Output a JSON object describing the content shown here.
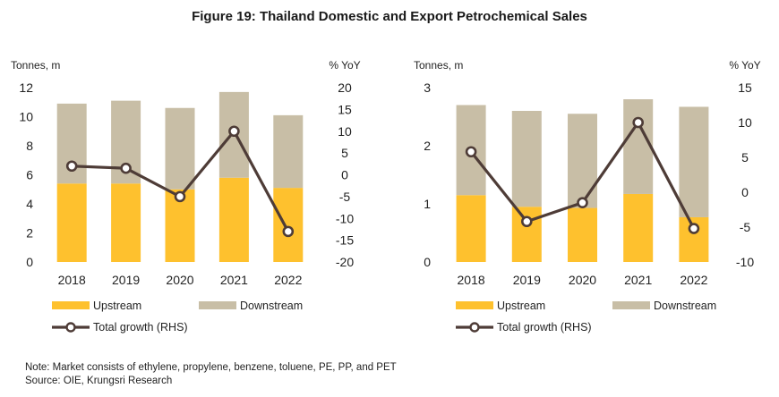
{
  "title": "Figure 19: Thailand  Domestic and Export Petrochemical Sales",
  "note": "Note: Market consists of ethylene, propylene, benzene, toluene, PE, PP, and PET",
  "source": "Source: OIE, Krungsri Research",
  "colors": {
    "upstream": "#FEC12E",
    "downstream": "#C8BEA6",
    "growth": "#4E3C37",
    "marker_fill": "#ffffff"
  },
  "chart_data": [
    {
      "type": "bar",
      "stacked": true,
      "categories": [
        "2018",
        "2019",
        "2020",
        "2021",
        "2022"
      ],
      "left_axis_label": "Tonnes, m",
      "right_axis_label": "% YoY",
      "ylim": [
        0,
        12
      ],
      "yticks": [
        0,
        2,
        4,
        6,
        8,
        10,
        12
      ],
      "y2lim": [
        -20,
        20
      ],
      "y2ticks": [
        -20,
        -15,
        -10,
        -5,
        0,
        5,
        10,
        15,
        20
      ],
      "series": [
        {
          "name": "Upstream",
          "kind": "bar",
          "axis": "left",
          "values": [
            5.4,
            5.4,
            5.0,
            5.8,
            5.1
          ]
        },
        {
          "name": "Downstream",
          "kind": "bar",
          "axis": "left",
          "values": [
            5.5,
            5.7,
            5.6,
            5.9,
            5.0
          ]
        },
        {
          "name": "Total growth (RHS)",
          "kind": "line",
          "axis": "right",
          "values": [
            2.0,
            1.5,
            -5.0,
            10.0,
            -13.0
          ]
        }
      ],
      "legend": [
        "Upstream",
        "Downstream",
        "Total growth (RHS)"
      ],
      "grid": false
    },
    {
      "type": "bar",
      "stacked": true,
      "categories": [
        "2018",
        "2019",
        "2020",
        "2021",
        "2022"
      ],
      "left_axis_label": "Tonnes, m",
      "right_axis_label": "% YoY",
      "ylim": [
        0,
        3
      ],
      "yticks": [
        0,
        1,
        2,
        3
      ],
      "y2lim": [
        -10,
        15
      ],
      "y2ticks": [
        -10,
        -5,
        0,
        5,
        10,
        15
      ],
      "series": [
        {
          "name": "Upstream",
          "kind": "bar",
          "axis": "left",
          "values": [
            1.15,
            0.95,
            0.93,
            1.17,
            0.77
          ]
        },
        {
          "name": "Downstream",
          "kind": "bar",
          "axis": "left",
          "values": [
            1.55,
            1.65,
            1.62,
            1.63,
            1.9
          ]
        },
        {
          "name": "Total growth (RHS)",
          "kind": "line",
          "axis": "right",
          "values": [
            5.8,
            -4.2,
            -1.5,
            10.0,
            -5.2
          ]
        }
      ],
      "legend": [
        "Upstream",
        "Downstream",
        "Total growth (RHS)"
      ],
      "grid": false
    }
  ]
}
